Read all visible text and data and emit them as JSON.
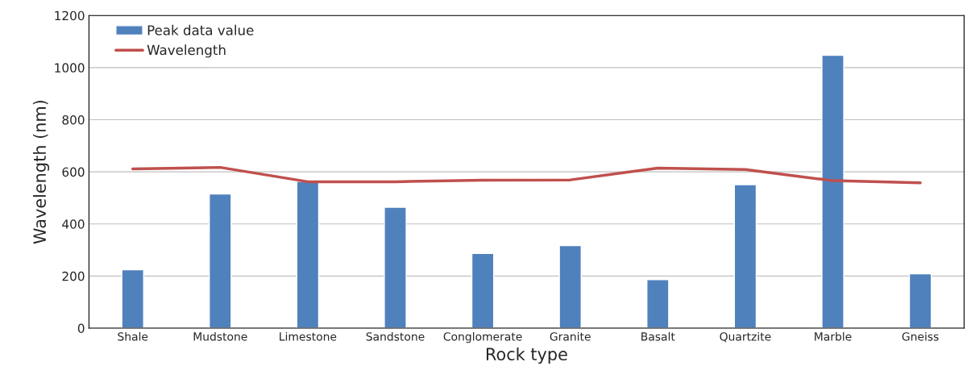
{
  "chart_data": {
    "type": "bar",
    "xlabel": "Rock type",
    "ylabel": "Wavelength (nm)",
    "categories": [
      "Shale",
      "Mudstone",
      "Limestone",
      "Sandstone",
      "Conglomerate",
      "Granite",
      "Basalt",
      "Quartzite",
      "Marble",
      "Gneiss"
    ],
    "series": [
      {
        "name": "Peak data value",
        "color": "#4f81bd",
        "values": [
          224,
          515,
          563,
          464,
          287,
          317,
          186,
          551,
          1047,
          209
        ]
      },
      {
        "name": "Wavelength",
        "type": "line",
        "color": "#c0504d",
        "values": [
          611,
          617,
          562,
          562,
          568,
          569,
          614,
          609,
          566,
          558
        ]
      }
    ],
    "ylim": [
      0,
      1200
    ],
    "yticks": [
      0,
      200,
      400,
      600,
      800,
      1000,
      1200
    ],
    "grid": "y",
    "legend": "top left"
  }
}
